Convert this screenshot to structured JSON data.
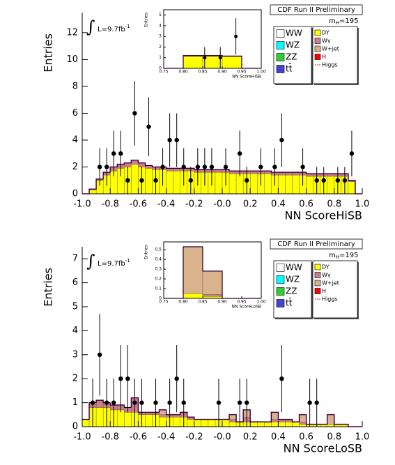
{
  "chart_data": [
    {
      "type": "histogram",
      "title": "CDF Run II Preliminary",
      "xlabel": "NN ScoreHiSB",
      "ylabel": "Entries",
      "lumi_symbol": "∫",
      "lumi_label": "L=9.7fb",
      "lumi_sup": "-1",
      "mass_label": "m",
      "mass_sub": "H",
      "mass_value": "=195",
      "xlim": [
        -1,
        1
      ],
      "ylim": [
        0,
        13.5
      ],
      "xticks": [
        {
          "value": -1,
          "label": "-1.0"
        },
        -0.8,
        -0.6,
        -0.4,
        -0.2,
        {
          "value": 0,
          "label": "-0.0"
        },
        0.2,
        0.4,
        0.6,
        0.8,
        {
          "value": 1,
          "label": "1.0"
        }
      ],
      "yticks": [
        0,
        2,
        4,
        6,
        8,
        10,
        12
      ],
      "bins": [
        -1,
        -0.95,
        -0.9,
        -0.85,
        -0.8,
        -0.75,
        -0.7,
        -0.65,
        -0.6,
        -0.55,
        -0.5,
        -0.45,
        -0.4,
        -0.35,
        -0.3,
        -0.25,
        -0.2,
        -0.15,
        -0.1,
        -0.05,
        0,
        0.05,
        0.1,
        0.15,
        0.2,
        0.25,
        0.3,
        0.35,
        0.4,
        0.45,
        0.5,
        0.55,
        0.6,
        0.65,
        0.7,
        0.75,
        0.8,
        0.85,
        0.9,
        0.95,
        1
      ],
      "series": [
        {
          "name": "WW",
          "color": "#ffffff"
        },
        {
          "name": "WZ",
          "color": "#00ffff"
        },
        {
          "name": "ZZ",
          "color": "#33cc33"
        },
        {
          "name": "tt̄",
          "color": "#4444cc"
        },
        {
          "name": "DY",
          "color": "#ffff00",
          "values": [
            0,
            0.3,
            1.0,
            1.4,
            1.7,
            1.9,
            2.0,
            2.2,
            2.0,
            1.9,
            1.8,
            1.8,
            1.7,
            1.7,
            1.7,
            1.7,
            1.6,
            1.6,
            1.6,
            1.6,
            1.6,
            1.5,
            1.5,
            1.5,
            1.5,
            1.5,
            1.5,
            1.4,
            1.4,
            1.4,
            1.4,
            1.4,
            1.3,
            1.3,
            1.3,
            1.3,
            1.3,
            1.3,
            0.9,
            0
          ]
        },
        {
          "name": "Wγ",
          "color": "#cc7f86",
          "values": [
            0,
            0.05,
            0.1,
            0.2,
            0.3,
            0.3,
            0.3,
            0.3,
            0.3,
            0.2,
            0.2,
            0.2,
            0.2,
            0.2,
            0.2,
            0.2,
            0.2,
            0.2,
            0.2,
            0.2,
            0.2,
            0.2,
            0.2,
            0.2,
            0.2,
            0.2,
            0.2,
            0.2,
            0.2,
            0.2,
            0.2,
            0.2,
            0.2,
            0.2,
            0.2,
            0.2,
            0.2,
            0.2,
            0.1,
            0
          ]
        },
        {
          "name": "W+jet",
          "color": "#d9b38c"
        },
        {
          "name": "H",
          "color": "#ff0000"
        },
        {
          "name": "Higgs",
          "color": "#ff0000",
          "style": "dashed"
        }
      ],
      "points": {
        "x": [
          -0.875,
          -0.825,
          -0.775,
          -0.725,
          -0.675,
          -0.625,
          -0.575,
          -0.525,
          -0.475,
          -0.425,
          -0.375,
          -0.325,
          -0.275,
          -0.225,
          -0.175,
          -0.125,
          -0.075,
          0.025,
          0.125,
          0.175,
          0.275,
          0.375,
          0.425,
          0.575,
          0.675,
          0.725,
          0.825,
          0.875,
          0.925
        ],
        "y": [
          2,
          2,
          3,
          3,
          1,
          6,
          1,
          5,
          1,
          2,
          4,
          4,
          2,
          1,
          2,
          2,
          2,
          2,
          3,
          1,
          2,
          2,
          4,
          2,
          1,
          1,
          1,
          1,
          3
        ],
        "err": [
          1.4,
          1.4,
          1.7,
          1.7,
          1,
          2.4,
          1,
          2.2,
          1,
          1.4,
          2,
          2,
          1.4,
          1,
          1.4,
          1.4,
          1.4,
          1.4,
          1.7,
          1,
          1.4,
          1.4,
          2,
          1.4,
          1,
          1,
          1,
          1,
          1.7
        ]
      }
    },
    {
      "type": "histogram",
      "xlabel": "NN ScoreHiSB",
      "ylabel": "Entries",
      "xlim": [
        0.75,
        1
      ],
      "ylim": [
        0,
        5.5
      ],
      "xticks": [
        0.75,
        {
          "value": 0.8,
          "label": "0.80"
        },
        0.85,
        {
          "value": 0.9,
          "label": "0.90"
        },
        0.95,
        {
          "value": 1,
          "label": "1.00"
        }
      ],
      "yticks": [
        0,
        1,
        2,
        3,
        4,
        5
      ],
      "bins": [
        0.75,
        0.8,
        0.85,
        0.9,
        0.95,
        1
      ],
      "series": [
        {
          "color": "#ffff00",
          "values": [
            0,
            1.1,
            1.1,
            1.1,
            0
          ]
        },
        {
          "color": "#cc7f86",
          "values": [
            0,
            0.1,
            0.1,
            0.05,
            0
          ]
        }
      ],
      "points": {
        "x": [
          0.855,
          0.895,
          0.935
        ],
        "y": [
          1,
          1,
          3
        ],
        "err": [
          1,
          1,
          1.7
        ]
      }
    },
    {
      "type": "histogram",
      "title": "CDF Run II Preliminary",
      "xlabel": "NN ScoreLoSB",
      "ylabel": "Entries",
      "lumi_symbol": "∫",
      "lumi_label": "L=9.7fb",
      "lumi_sup": "-1",
      "mass_label": "m",
      "mass_sub": "H",
      "mass_value": "=195",
      "xlim": [
        -1,
        1
      ],
      "ylim": [
        0,
        7.5
      ],
      "xticks": [
        {
          "value": -1,
          "label": "-1.0"
        },
        -0.8,
        -0.6,
        -0.4,
        -0.2,
        {
          "value": 0,
          "label": "-0.0"
        },
        0.2,
        0.4,
        0.6,
        0.8,
        {
          "value": 1,
          "label": "1.0"
        }
      ],
      "yticks": [
        0,
        1,
        2,
        3,
        4,
        5,
        6,
        7
      ],
      "bins": [
        -1,
        -0.95,
        -0.9,
        -0.85,
        -0.8,
        -0.75,
        -0.7,
        -0.65,
        -0.6,
        -0.55,
        -0.5,
        -0.45,
        -0.4,
        -0.35,
        -0.3,
        -0.25,
        -0.2,
        -0.15,
        -0.1,
        -0.05,
        0,
        0.05,
        0.1,
        0.15,
        0.2,
        0.25,
        0.3,
        0.35,
        0.4,
        0.45,
        0.5,
        0.55,
        0.6,
        0.65,
        0.7,
        0.75,
        0.8,
        0.85,
        0.9,
        0.95,
        1
      ],
      "series": [
        {
          "name": "WW",
          "color": "#ffffff"
        },
        {
          "name": "WZ",
          "color": "#00ffff"
        },
        {
          "name": "ZZ",
          "color": "#33cc33"
        },
        {
          "name": "tt̄",
          "color": "#4444cc"
        },
        {
          "name": "DY",
          "color": "#ffff00",
          "values": [
            0.3,
            0.8,
            0.8,
            0.8,
            0.7,
            0.7,
            0.6,
            0.6,
            0.5,
            0.5,
            0.5,
            0.4,
            0.4,
            0.4,
            0.4,
            0.3,
            0.3,
            0.3,
            0.3,
            0.3,
            0.3,
            0.2,
            0.2,
            0.2,
            0.2,
            0.2,
            0.2,
            0.2,
            0.2,
            0.2,
            0.2,
            0.1,
            0.1,
            0.1,
            0.1,
            0.1,
            0.1,
            0.1,
            0,
            0
          ]
        },
        {
          "name": "Wγ",
          "color": "#cc7f86",
          "values": [
            0,
            0.2,
            0.3,
            0.2,
            0.2,
            0.2,
            0.2,
            0.6,
            0.1,
            0.1,
            0.1,
            0.1,
            0.1,
            0.1,
            0.2,
            0.1,
            0,
            0,
            0,
            0,
            0,
            0.1,
            0,
            0.2,
            0,
            0,
            0,
            0.1,
            0.1,
            0.1,
            0,
            0.1,
            0,
            0,
            0,
            0,
            0,
            0,
            0,
            0
          ]
        },
        {
          "name": "W+jet",
          "color": "#d9b38c",
          "values": [
            0,
            0,
            0,
            0,
            0,
            0,
            0,
            0,
            0,
            0,
            0,
            0.2,
            0,
            0,
            0,
            0,
            0,
            0,
            0,
            0,
            0,
            0.2,
            0,
            0.3,
            0,
            0,
            0,
            0.3,
            0,
            0,
            0,
            0.3,
            0,
            0,
            0,
            0.4,
            0,
            0,
            0,
            0
          ]
        },
        {
          "name": "H",
          "color": "#ff0000"
        },
        {
          "name": "Higgs",
          "color": "#ff0000",
          "style": "dashed"
        }
      ],
      "points": {
        "x": [
          -0.925,
          -0.875,
          -0.825,
          -0.775,
          -0.725,
          -0.675,
          -0.625,
          -0.575,
          -0.475,
          -0.375,
          -0.325,
          -0.275,
          -0.025,
          0.125,
          0.175,
          0.425,
          0.625,
          0.675
        ],
        "y": [
          1,
          3,
          1,
          1,
          2,
          2,
          1,
          1,
          1,
          1,
          2,
          1,
          1,
          1,
          1,
          2,
          1,
          1
        ],
        "err": [
          1,
          1.7,
          1,
          1,
          1.4,
          1.4,
          1,
          1,
          1,
          1,
          1.4,
          1,
          1,
          1,
          1,
          1.4,
          1,
          1
        ]
      }
    },
    {
      "type": "histogram",
      "xlabel": "NN ScoreLoSB",
      "ylabel": "Entries",
      "xlim": [
        0.75,
        1
      ],
      "ylim": [
        0,
        0.58
      ],
      "xticks": [
        0.75,
        {
          "value": 0.8,
          "label": "0.80"
        },
        0.85,
        {
          "value": 0.9,
          "label": "0.90"
        },
        0.95,
        {
          "value": 1,
          "label": "1.00"
        }
      ],
      "yticks": [
        0,
        0.1,
        0.2,
        0.3,
        0.4,
        0.5
      ],
      "bins": [
        0.75,
        0.8,
        0.85,
        0.9,
        0.95,
        1
      ],
      "series": [
        {
          "color": "#ffff00",
          "values": [
            0,
            0.05,
            0.02,
            0,
            0
          ]
        },
        {
          "color": "#cc7f86",
          "values": [
            0,
            0,
            0.02,
            0,
            0
          ]
        },
        {
          "color": "#d9b38c",
          "values": [
            0,
            0.48,
            0.24,
            0,
            0
          ]
        }
      ]
    }
  ]
}
